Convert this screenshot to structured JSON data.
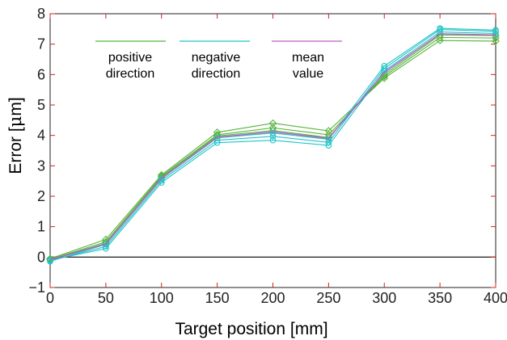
{
  "chart_data": {
    "type": "line",
    "xlabel": "Target position [mm]",
    "ylabel_prefix": "Error [",
    "ylabel_mu": "μ",
    "ylabel_suffix": "m]",
    "xlim": [
      0,
      400
    ],
    "ylim": [
      -1,
      8
    ],
    "xticks": [
      0,
      50,
      100,
      150,
      200,
      250,
      300,
      350,
      400
    ],
    "yticks": [
      -1,
      0,
      1,
      2,
      3,
      4,
      5,
      6,
      7,
      8
    ],
    "grid": false,
    "zero_line": true,
    "legend": {
      "placement": "top-left",
      "entries": [
        {
          "lines": [
            "positive",
            "direction"
          ],
          "color": "#55b33b"
        },
        {
          "lines": [
            "negative",
            "direction"
          ],
          "color": "#22c4c8"
        },
        {
          "lines": [
            "mean",
            "value"
          ],
          "color": "#b75fc4"
        }
      ]
    },
    "x": [
      0,
      50,
      100,
      150,
      200,
      250,
      300,
      350,
      400
    ],
    "series": [
      {
        "group": "positive direction",
        "color": "#55b33b",
        "marker": "diamond",
        "values": [
          -0.05,
          0.58,
          2.7,
          4.1,
          4.4,
          4.15,
          5.88,
          7.12,
          7.1
        ]
      },
      {
        "group": "positive direction",
        "color": "#55b33b",
        "marker": "diamond",
        "values": [
          -0.07,
          0.5,
          2.66,
          4.02,
          4.25,
          4.02,
          5.94,
          7.22,
          7.2
        ]
      },
      {
        "group": "positive direction",
        "color": "#55b33b",
        "marker": "diamond",
        "values": [
          -0.08,
          0.45,
          2.62,
          3.98,
          4.16,
          3.93,
          6.0,
          7.3,
          7.28
        ]
      },
      {
        "group": "negative direction",
        "color": "#22c4c8",
        "marker": "circle",
        "values": [
          -0.1,
          0.28,
          2.45,
          3.76,
          3.84,
          3.67,
          6.12,
          7.4,
          7.35
        ]
      },
      {
        "group": "negative direction",
        "color": "#22c4c8",
        "marker": "circle",
        "values": [
          -0.12,
          0.35,
          2.52,
          3.84,
          3.97,
          3.77,
          6.2,
          7.48,
          7.42
        ]
      },
      {
        "group": "negative direction",
        "color": "#22c4c8",
        "marker": "circle",
        "values": [
          -0.14,
          0.42,
          2.58,
          3.92,
          4.08,
          3.87,
          6.28,
          7.52,
          7.46
        ]
      },
      {
        "group": "mean value",
        "color": "#b75fc4",
        "marker": "none",
        "values": [
          -0.09,
          0.43,
          2.59,
          3.94,
          4.12,
          3.9,
          6.07,
          7.34,
          7.3
        ]
      }
    ]
  }
}
